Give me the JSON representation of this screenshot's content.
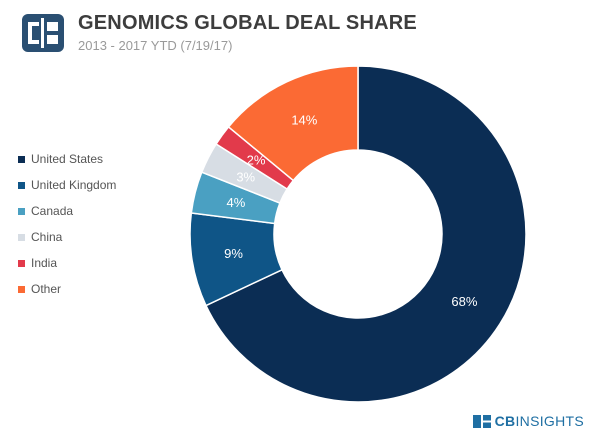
{
  "header": {
    "title": "GENOMICS GLOBAL DEAL SHARE",
    "subtitle": "2013 - 2017 YTD (7/19/17)"
  },
  "footer": {
    "brand_bold": "CB",
    "brand_rest": "INSIGHTS"
  },
  "colors": {
    "logo_left": "#2a4f72",
    "logo_right": "#1b3a5c"
  },
  "chart_data": {
    "type": "pie",
    "variant": "donut",
    "title": "GENOMICS GLOBAL DEAL SHARE",
    "subtitle": "2013 - 2017 YTD (7/19/17)",
    "unit": "%",
    "legend_position": "left",
    "slices": [
      {
        "label": "United States",
        "value": 68,
        "display": "68%",
        "color": "#0b2d54"
      },
      {
        "label": "United Kingdom",
        "value": 9,
        "display": "9%",
        "color": "#0f5587"
      },
      {
        "label": "Canada",
        "value": 4,
        "display": "4%",
        "color": "#4aa0c2"
      },
      {
        "label": "China",
        "value": 3,
        "display": "3%",
        "color": "#d7dde4"
      },
      {
        "label": "India",
        "value": 2,
        "display": "2%",
        "color": "#e23a4b"
      },
      {
        "label": "Other",
        "value": 14,
        "display": "14%",
        "color": "#fb6a34"
      }
    ]
  }
}
